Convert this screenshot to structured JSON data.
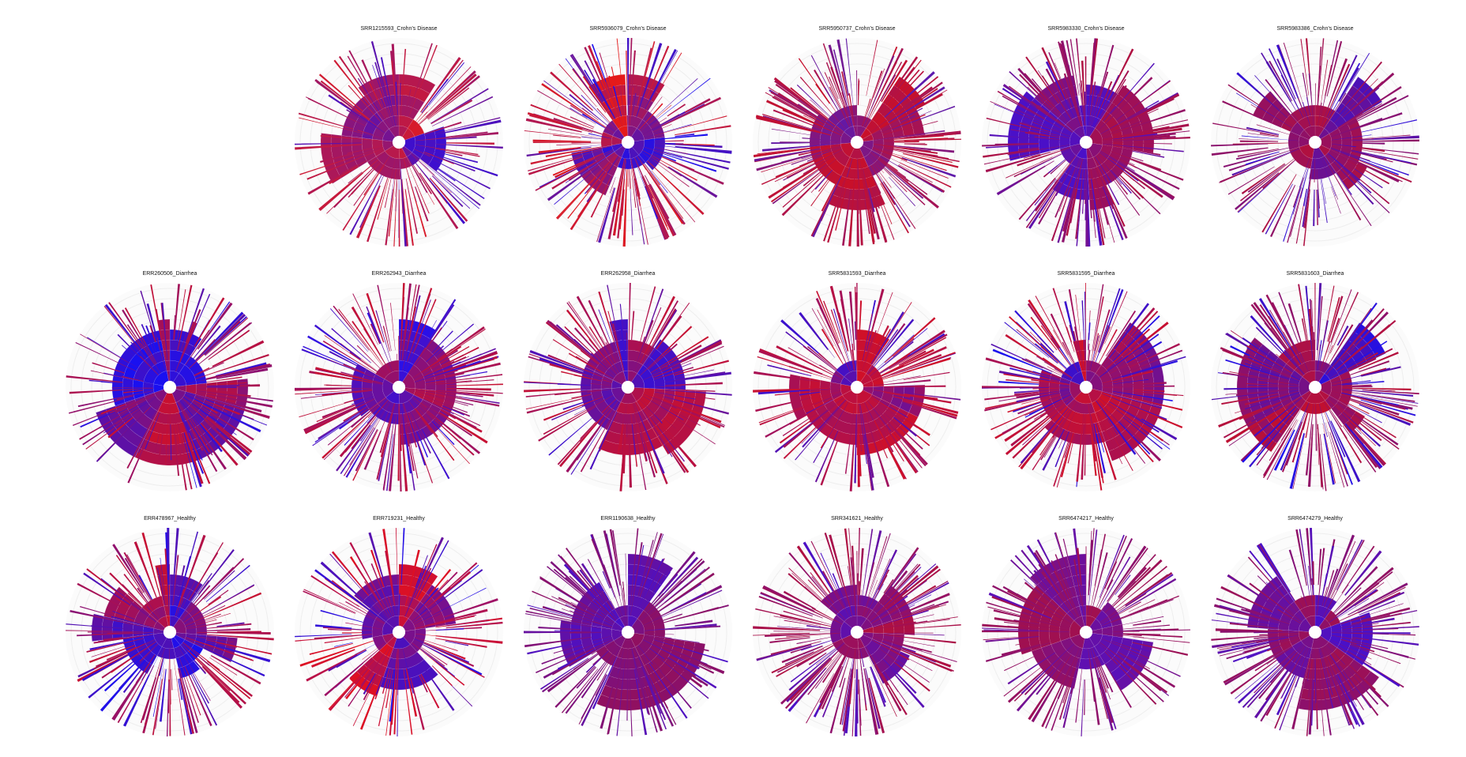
{
  "chart_data": [
    {
      "type": "sunburst",
      "row": 0,
      "col": 1,
      "title": "SRR1215593_Crohn's Disease",
      "dominant_color": "#d81b2a",
      "secondary_color": "#3b0fd0",
      "seed": 11
    },
    {
      "type": "sunburst",
      "row": 0,
      "col": 2,
      "title": "SRR5936079_Crohn's Disease",
      "dominant_color": "#e51a1a",
      "secondary_color": "#1a10f0",
      "seed": 23
    },
    {
      "type": "sunburst",
      "row": 0,
      "col": 3,
      "title": "SRR5950737_Crohn's Disease",
      "dominant_color": "#c8102a",
      "secondary_color": "#5a1ab0",
      "seed": 37
    },
    {
      "type": "sunburst",
      "row": 0,
      "col": 4,
      "title": "SRR5983330_Crohn's Disease",
      "dominant_color": "#b01040",
      "secondary_color": "#4a10c8",
      "seed": 41
    },
    {
      "type": "sunburst",
      "row": 0,
      "col": 5,
      "title": "SRR5983386_Crohn's Disease",
      "dominant_color": "#b01040",
      "secondary_color": "#2a10e0",
      "seed": 53
    },
    {
      "type": "sunburst",
      "row": 1,
      "col": 0,
      "title": "ERR260506_Diarrhea",
      "dominant_color": "#c81030",
      "secondary_color": "#1a10f0",
      "seed": 61
    },
    {
      "type": "sunburst",
      "row": 1,
      "col": 1,
      "title": "ERR262943_Diarrhea",
      "dominant_color": "#c81030",
      "secondary_color": "#2a10e8",
      "seed": 73
    },
    {
      "type": "sunburst",
      "row": 1,
      "col": 2,
      "title": "ERR262958_Diarrhea",
      "dominant_color": "#c81030",
      "secondary_color": "#3a10d0",
      "seed": 89
    },
    {
      "type": "sunburst",
      "row": 1,
      "col": 3,
      "title": "SRR5831593_Diarrhea",
      "dominant_color": "#d01028",
      "secondary_color": "#3a10d0",
      "seed": 97
    },
    {
      "type": "sunburst",
      "row": 1,
      "col": 4,
      "title": "SRR5831595_Diarrhea",
      "dominant_color": "#d01028",
      "secondary_color": "#1a10f0",
      "seed": 101
    },
    {
      "type": "sunburst",
      "row": 1,
      "col": 5,
      "title": "SRR5831603_Diarrhea",
      "dominant_color": "#c01030",
      "secondary_color": "#1a10f0",
      "seed": 113
    },
    {
      "type": "sunburst",
      "row": 2,
      "col": 0,
      "title": "ERR478967_Healthy",
      "dominant_color": "#c81030",
      "secondary_color": "#1a10f0",
      "seed": 127
    },
    {
      "type": "sunburst",
      "row": 2,
      "col": 1,
      "title": "ERR719231_Healthy",
      "dominant_color": "#e01020",
      "secondary_color": "#1a10f0",
      "seed": 131
    },
    {
      "type": "sunburst",
      "row": 2,
      "col": 2,
      "title": "ERR1190638_Healthy",
      "dominant_color": "#901060",
      "secondary_color": "#4a10c8",
      "seed": 149
    },
    {
      "type": "sunburst",
      "row": 2,
      "col": 3,
      "title": "SRR341621_Healthy",
      "dominant_color": "#b01040",
      "secondary_color": "#4a10c8",
      "seed": 157
    },
    {
      "type": "sunburst",
      "row": 2,
      "col": 4,
      "title": "SRR6474217_Healthy",
      "dominant_color": "#a01050",
      "secondary_color": "#5a10b8",
      "seed": 163
    },
    {
      "type": "sunburst",
      "row": 2,
      "col": 5,
      "title": "SRR6474279_Healthy",
      "dominant_color": "#a01050",
      "secondary_color": "#4a10c8",
      "seed": 173
    }
  ]
}
